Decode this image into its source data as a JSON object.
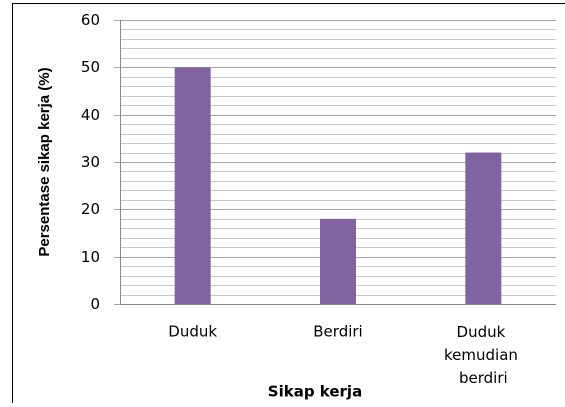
{
  "chart_data": {
    "type": "bar",
    "categories": [
      "Duduk",
      "Berdiri",
      "Duduk kemudian berdiri"
    ],
    "values": [
      50,
      18,
      32
    ],
    "color": "#8064a2",
    "xlabel": "Sikap kerja",
    "ylabel": "Persentase sikap kerja (%)",
    "ylim": [
      0,
      60
    ],
    "yticks": [
      0,
      10,
      20,
      30,
      40,
      50,
      60
    ],
    "minor_yticks": [
      2,
      4,
      6,
      8,
      12,
      14,
      16,
      18,
      22,
      24,
      26,
      28,
      32,
      34,
      36,
      38,
      42,
      44,
      46,
      48,
      52,
      54,
      56,
      58
    ],
    "grid": true
  }
}
